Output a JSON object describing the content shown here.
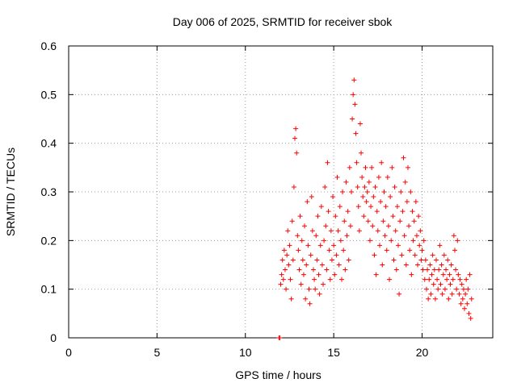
{
  "chart_data": {
    "type": "scatter",
    "title": "Day 006 of 2025, SRMTID for receiver sbok",
    "xlabel": "GPS time / hours",
    "ylabel": "SRMTID / TECUs",
    "xlim": [
      0,
      24
    ],
    "ylim": [
      0,
      0.6
    ],
    "x_ticks": [
      0,
      5,
      10,
      15,
      20
    ],
    "x_tick_labels": [
      "0",
      "5",
      "10",
      "15",
      "20"
    ],
    "y_ticks": [
      0,
      0.1,
      0.2,
      0.3,
      0.4,
      0.5,
      0.6
    ],
    "y_tick_labels": [
      "0",
      "0.1",
      "0.2",
      "0.3",
      "0.4",
      "0.5",
      "0.6"
    ],
    "grid": true,
    "marker": "+",
    "color": "#ff0000",
    "series": [
      {
        "name": "SRMTID",
        "points": [
          [
            11.9,
            0.0
          ],
          [
            11.95,
            0.0
          ],
          [
            12.0,
            0.11
          ],
          [
            12.05,
            0.13
          ],
          [
            12.1,
            0.16
          ],
          [
            12.15,
            0.12
          ],
          [
            12.2,
            0.18
          ],
          [
            12.25,
            0.14
          ],
          [
            12.3,
            0.1
          ],
          [
            12.35,
            0.17
          ],
          [
            12.4,
            0.22
          ],
          [
            12.45,
            0.15
          ],
          [
            12.5,
            0.19
          ],
          [
            12.55,
            0.12
          ],
          [
            12.6,
            0.08
          ],
          [
            12.65,
            0.24
          ],
          [
            12.7,
            0.16
          ],
          [
            12.75,
            0.31
          ],
          [
            12.8,
            0.41
          ],
          [
            12.85,
            0.43
          ],
          [
            12.9,
            0.38
          ],
          [
            12.95,
            0.21
          ],
          [
            13.0,
            0.18
          ],
          [
            13.05,
            0.14
          ],
          [
            13.1,
            0.25
          ],
          [
            13.15,
            0.11
          ],
          [
            13.2,
            0.2
          ],
          [
            13.25,
            0.16
          ],
          [
            13.3,
            0.13
          ],
          [
            13.35,
            0.23
          ],
          [
            13.4,
            0.08
          ],
          [
            13.45,
            0.15
          ],
          [
            13.5,
            0.28
          ],
          [
            13.55,
            0.19
          ],
          [
            13.6,
            0.1
          ],
          [
            13.65,
            0.07
          ],
          [
            13.7,
            0.17
          ],
          [
            13.75,
            0.29
          ],
          [
            13.8,
            0.22
          ],
          [
            13.85,
            0.14
          ],
          [
            13.9,
            0.12
          ],
          [
            13.95,
            0.1
          ],
          [
            14.0,
            0.21
          ],
          [
            14.05,
            0.16
          ],
          [
            14.1,
            0.25
          ],
          [
            14.15,
            0.13
          ],
          [
            14.2,
            0.09
          ],
          [
            14.25,
            0.19
          ],
          [
            14.3,
            0.27
          ],
          [
            14.35,
            0.15
          ],
          [
            14.4,
            0.11
          ],
          [
            14.45,
            0.2
          ],
          [
            14.5,
            0.31
          ],
          [
            14.55,
            0.23
          ],
          [
            14.6,
            0.14
          ],
          [
            14.65,
            0.36
          ],
          [
            14.7,
            0.26
          ],
          [
            14.75,
            0.18
          ],
          [
            14.8,
            0.12
          ],
          [
            14.85,
            0.22
          ],
          [
            14.9,
            0.16
          ],
          [
            14.95,
            0.29
          ],
          [
            15.0,
            0.19
          ],
          [
            15.05,
            0.13
          ],
          [
            15.1,
            0.25
          ],
          [
            15.15,
            0.17
          ],
          [
            15.2,
            0.33
          ],
          [
            15.25,
            0.22
          ],
          [
            15.3,
            0.15
          ],
          [
            15.35,
            0.27
          ],
          [
            15.4,
            0.2
          ],
          [
            15.45,
            0.12
          ],
          [
            15.5,
            0.3
          ],
          [
            15.55,
            0.18
          ],
          [
            15.6,
            0.24
          ],
          [
            15.65,
            0.14
          ],
          [
            15.7,
            0.32
          ],
          [
            15.75,
            0.21
          ],
          [
            15.8,
            0.26
          ],
          [
            15.85,
            0.16
          ],
          [
            15.9,
            0.35
          ],
          [
            15.95,
            0.23
          ],
          [
            16.0,
            0.3
          ],
          [
            16.05,
            0.45
          ],
          [
            16.1,
            0.5
          ],
          [
            16.15,
            0.53
          ],
          [
            16.2,
            0.48
          ],
          [
            16.25,
            0.42
          ],
          [
            16.3,
            0.36
          ],
          [
            16.35,
            0.31
          ],
          [
            16.4,
            0.27
          ],
          [
            16.45,
            0.22
          ],
          [
            16.5,
            0.44
          ],
          [
            16.55,
            0.38
          ],
          [
            16.6,
            0.33
          ],
          [
            16.65,
            0.29
          ],
          [
            16.7,
            0.25
          ],
          [
            16.75,
            0.31
          ],
          [
            16.8,
            0.35
          ],
          [
            16.85,
            0.28
          ],
          [
            16.9,
            0.3
          ],
          [
            16.95,
            0.24
          ],
          [
            17.0,
            0.32
          ],
          [
            17.05,
            0.2
          ],
          [
            17.1,
            0.27
          ],
          [
            17.15,
            0.35
          ],
          [
            17.2,
            0.23
          ],
          [
            17.25,
            0.29
          ],
          [
            17.3,
            0.17
          ],
          [
            17.35,
            0.31
          ],
          [
            17.4,
            0.13
          ],
          [
            17.45,
            0.26
          ],
          [
            17.5,
            0.22
          ],
          [
            17.55,
            0.33
          ],
          [
            17.6,
            0.19
          ],
          [
            17.65,
            0.28
          ],
          [
            17.7,
            0.36
          ],
          [
            17.75,
            0.15
          ],
          [
            17.8,
            0.24
          ],
          [
            17.85,
            0.3
          ],
          [
            17.9,
            0.21
          ],
          [
            17.95,
            0.27
          ],
          [
            18.0,
            0.18
          ],
          [
            18.05,
            0.33
          ],
          [
            18.1,
            0.23
          ],
          [
            18.15,
            0.12
          ],
          [
            18.2,
            0.29
          ],
          [
            18.25,
            0.2
          ],
          [
            18.3,
            0.35
          ],
          [
            18.35,
            0.25
          ],
          [
            18.4,
            0.16
          ],
          [
            18.45,
            0.31
          ],
          [
            18.5,
            0.22
          ],
          [
            18.55,
            0.14
          ],
          [
            18.6,
            0.27
          ],
          [
            18.65,
            0.19
          ],
          [
            18.7,
            0.09
          ],
          [
            18.75,
            0.24
          ],
          [
            18.8,
            0.3
          ],
          [
            18.85,
            0.17
          ],
          [
            18.9,
            0.26
          ],
          [
            18.95,
            0.37
          ],
          [
            19.0,
            0.21
          ],
          [
            19.05,
            0.32
          ],
          [
            19.1,
            0.15
          ],
          [
            19.15,
            0.28
          ],
          [
            19.2,
            0.35
          ],
          [
            19.25,
            0.23
          ],
          [
            19.3,
            0.18
          ],
          [
            19.35,
            0.3
          ],
          [
            19.4,
            0.13
          ],
          [
            19.45,
            0.26
          ],
          [
            19.5,
            0.2
          ],
          [
            19.55,
            0.24
          ],
          [
            19.6,
            0.17
          ],
          [
            19.65,
            0.28
          ],
          [
            19.7,
            0.21
          ],
          [
            19.75,
            0.15
          ],
          [
            19.8,
            0.25
          ],
          [
            19.85,
            0.19
          ],
          [
            19.9,
            0.22
          ],
          [
            19.95,
            0.16
          ],
          [
            20.0,
            0.18
          ],
          [
            20.05,
            0.14
          ],
          [
            20.1,
            0.2
          ],
          [
            20.15,
            0.12
          ],
          [
            20.2,
            0.16
          ],
          [
            20.25,
            0.1
          ],
          [
            20.3,
            0.14
          ],
          [
            20.35,
            0.08
          ],
          [
            20.4,
            0.12
          ],
          [
            20.45,
            0.15
          ],
          [
            20.5,
            0.09
          ],
          [
            20.55,
            0.13
          ],
          [
            20.6,
            0.17
          ],
          [
            20.65,
            0.11
          ],
          [
            20.7,
            0.14
          ],
          [
            20.75,
            0.08
          ],
          [
            20.8,
            0.16
          ],
          [
            20.85,
            0.12
          ],
          [
            20.9,
            0.1
          ],
          [
            20.95,
            0.14
          ],
          [
            21.0,
            0.19
          ],
          [
            21.05,
            0.11
          ],
          [
            21.1,
            0.15
          ],
          [
            21.15,
            0.09
          ],
          [
            21.2,
            0.13
          ],
          [
            21.25,
            0.17
          ],
          [
            21.3,
            0.1
          ],
          [
            21.35,
            0.14
          ],
          [
            21.4,
            0.12
          ],
          [
            21.45,
            0.16
          ],
          [
            21.5,
            0.08
          ],
          [
            21.55,
            0.13
          ],
          [
            21.6,
            0.11
          ],
          [
            21.65,
            0.15
          ],
          [
            21.7,
            0.09
          ],
          [
            21.75,
            0.12
          ],
          [
            21.8,
            0.21
          ],
          [
            21.85,
            0.18
          ],
          [
            21.9,
            0.14
          ],
          [
            21.95,
            0.1
          ],
          [
            22.0,
            0.2
          ],
          [
            22.05,
            0.13
          ],
          [
            22.1,
            0.09
          ],
          [
            22.15,
            0.12
          ],
          [
            22.2,
            0.07
          ],
          [
            22.25,
            0.11
          ],
          [
            22.3,
            0.08
          ],
          [
            22.35,
            0.1
          ],
          [
            22.4,
            0.06
          ],
          [
            22.45,
            0.09
          ],
          [
            22.5,
            0.12
          ],
          [
            22.55,
            0.07
          ],
          [
            22.6,
            0.1
          ],
          [
            22.65,
            0.05
          ],
          [
            22.7,
            0.13
          ],
          [
            22.75,
            0.04
          ],
          [
            22.8,
            0.08
          ]
        ]
      }
    ]
  }
}
